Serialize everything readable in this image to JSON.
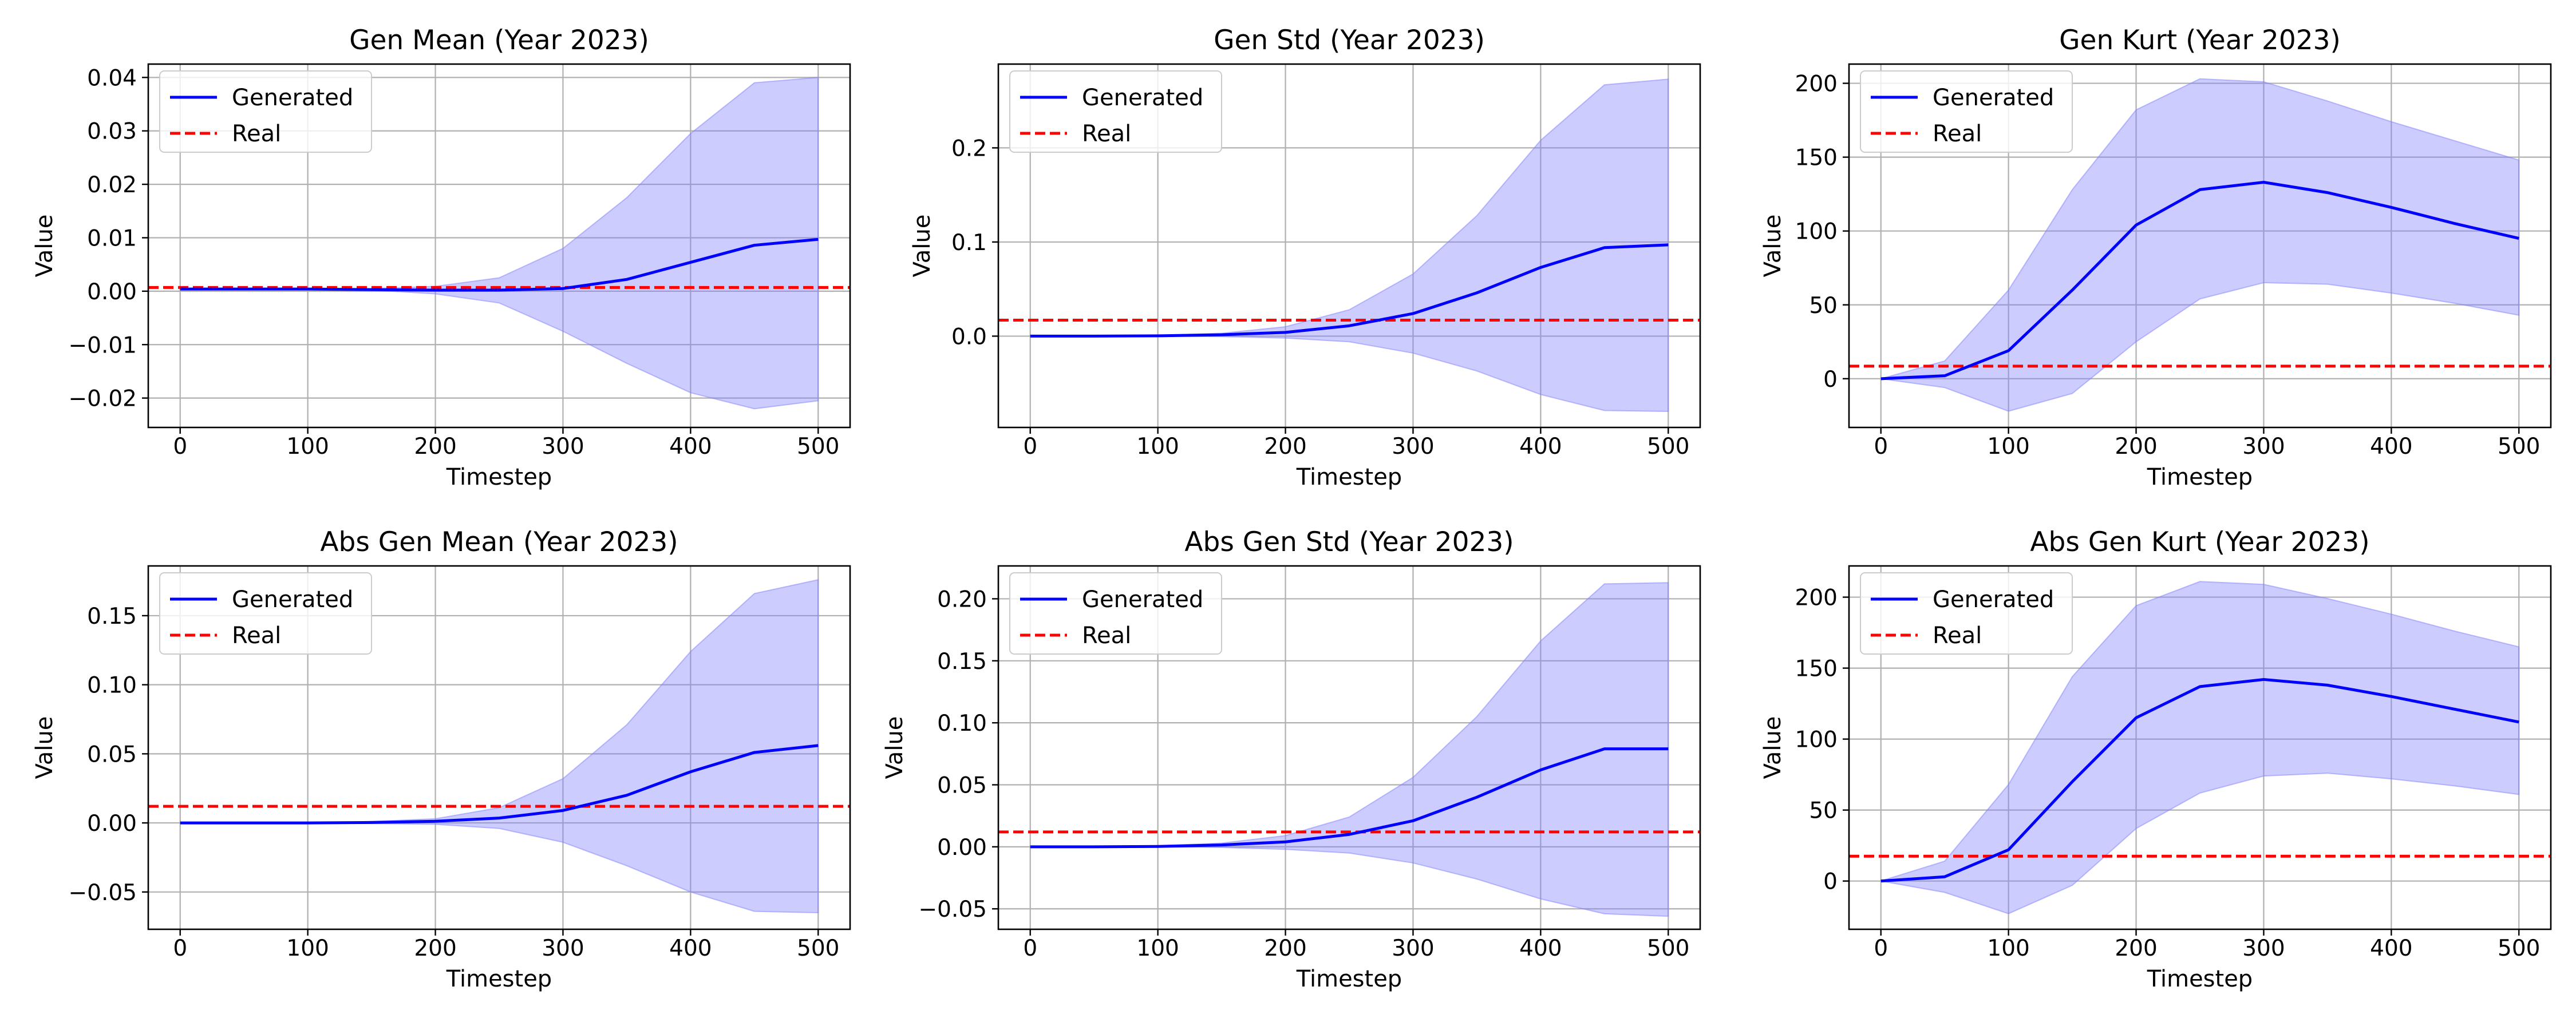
{
  "figure": {
    "background": "#ffffff"
  },
  "colors": {
    "generated": "#0000ff",
    "real": "#ff0000",
    "band": "#8080ff",
    "grid": "#b0b0b0",
    "axis": "#000000"
  },
  "chart_data": [
    {
      "type": "line",
      "title": "Gen Mean (Year 2023)",
      "xlabel": "Timestep",
      "ylabel": "Value",
      "xlim": [
        -25,
        525
      ],
      "ylim": [
        -0.0255,
        0.0425
      ],
      "xticks": [
        0,
        100,
        200,
        300,
        400,
        500
      ],
      "xtick_labels": [
        "0",
        "100",
        "200",
        "300",
        "400",
        "500"
      ],
      "yticks": [
        -0.02,
        -0.01,
        0.0,
        0.01,
        0.02,
        0.03,
        0.04
      ],
      "ytick_labels": [
        "−0.02",
        "−0.01",
        "0.00",
        "0.01",
        "0.02",
        "0.03",
        "0.04"
      ],
      "grid": true,
      "legend": {
        "location": "upper left",
        "entries": [
          "Generated",
          "Real"
        ]
      },
      "x": [
        0,
        50,
        100,
        150,
        200,
        250,
        300,
        350,
        400,
        450,
        500
      ],
      "series": [
        {
          "name": "Generated",
          "style": "solid",
          "values": [
            0.0004,
            0.0004,
            0.0004,
            0.0003,
            0.0002,
            0.0002,
            0.0005,
            0.0022,
            0.0054,
            0.0086,
            0.0097
          ]
        },
        {
          "name": "Real",
          "style": "dashed",
          "values": [
            0.0007,
            0.0007,
            0.0007,
            0.0007,
            0.0007,
            0.0007,
            0.0007,
            0.0007,
            0.0007,
            0.0007,
            0.0007
          ]
        }
      ],
      "band": {
        "lower": [
          0.0004,
          0.0004,
          0.0004,
          0.0002,
          -0.0005,
          -0.0022,
          -0.0075,
          -0.0135,
          -0.019,
          -0.022,
          -0.0205
        ],
        "upper": [
          0.0004,
          0.0004,
          0.0004,
          0.0005,
          0.0009,
          0.0025,
          0.008,
          0.0175,
          0.0295,
          0.039,
          0.04
        ]
      }
    },
    {
      "type": "line",
      "title": "Gen Std (Year 2023)",
      "xlabel": "Timestep",
      "ylabel": "Value",
      "xlim": [
        -25,
        525
      ],
      "ylim": [
        -0.097,
        0.289
      ],
      "xticks": [
        0,
        100,
        200,
        300,
        400,
        500
      ],
      "xtick_labels": [
        "0",
        "100",
        "200",
        "300",
        "400",
        "500"
      ],
      "yticks": [
        0.0,
        0.1,
        0.2
      ],
      "ytick_labels": [
        "0.0",
        "0.1",
        "0.2"
      ],
      "grid": true,
      "legend": {
        "location": "upper left",
        "entries": [
          "Generated",
          "Real"
        ]
      },
      "x": [
        0,
        50,
        100,
        150,
        200,
        250,
        300,
        350,
        400,
        450,
        500
      ],
      "series": [
        {
          "name": "Generated",
          "style": "solid",
          "values": [
            0.0,
            0.0,
            0.0003,
            0.0015,
            0.004,
            0.011,
            0.024,
            0.046,
            0.073,
            0.094,
            0.097
          ]
        },
        {
          "name": "Real",
          "style": "dashed",
          "values": [
            0.017,
            0.017,
            0.017,
            0.017,
            0.017,
            0.017,
            0.017,
            0.017,
            0.017,
            0.017,
            0.017
          ]
        }
      ],
      "band": {
        "lower": [
          0.0,
          0.0,
          0.0,
          -0.0005,
          -0.002,
          -0.006,
          -0.018,
          -0.037,
          -0.062,
          -0.079,
          -0.08
        ],
        "upper": [
          0.0,
          0.0,
          0.0008,
          0.003,
          0.01,
          0.028,
          0.066,
          0.128,
          0.208,
          0.267,
          0.273
        ]
      }
    },
    {
      "type": "line",
      "title": "Gen Kurt (Year 2023)",
      "xlabel": "Timestep",
      "ylabel": "Value",
      "xlim": [
        -25,
        525
      ],
      "ylim": [
        -33,
        213
      ],
      "xticks": [
        0,
        100,
        200,
        300,
        400,
        500
      ],
      "xtick_labels": [
        "0",
        "100",
        "200",
        "300",
        "400",
        "500"
      ],
      "yticks": [
        0,
        50,
        100,
        150,
        200
      ],
      "ytick_labels": [
        "0",
        "50",
        "100",
        "150",
        "200"
      ],
      "grid": true,
      "legend": {
        "location": "upper left",
        "entries": [
          "Generated",
          "Real"
        ]
      },
      "x": [
        0,
        50,
        100,
        150,
        200,
        250,
        300,
        350,
        400,
        450,
        500
      ],
      "series": [
        {
          "name": "Generated",
          "style": "solid",
          "values": [
            0,
            2,
            19,
            60,
            104,
            128,
            133,
            126,
            116,
            105,
            95
          ]
        },
        {
          "name": "Real",
          "style": "dashed",
          "values": [
            8.5,
            8.5,
            8.5,
            8.5,
            8.5,
            8.5,
            8.5,
            8.5,
            8.5,
            8.5,
            8.5
          ]
        }
      ],
      "band": {
        "lower": [
          0,
          -6,
          -22,
          -10,
          25,
          54,
          65,
          64,
          58,
          51,
          43
        ],
        "upper": [
          0,
          12,
          60,
          128,
          182,
          203,
          201,
          188,
          174,
          161,
          148
        ]
      }
    },
    {
      "type": "line",
      "title": "Abs Gen Mean (Year 2023)",
      "xlabel": "Timestep",
      "ylabel": "Value",
      "xlim": [
        -25,
        525
      ],
      "ylim": [
        -0.077,
        0.186
      ],
      "xticks": [
        0,
        100,
        200,
        300,
        400,
        500
      ],
      "xtick_labels": [
        "0",
        "100",
        "200",
        "300",
        "400",
        "500"
      ],
      "yticks": [
        -0.05,
        0.0,
        0.05,
        0.1,
        0.15
      ],
      "ytick_labels": [
        "−0.05",
        "0.00",
        "0.05",
        "0.10",
        "0.15"
      ],
      "grid": true,
      "legend": {
        "location": "upper left",
        "entries": [
          "Generated",
          "Real"
        ]
      },
      "x": [
        0,
        50,
        100,
        150,
        200,
        250,
        300,
        350,
        400,
        450,
        500
      ],
      "series": [
        {
          "name": "Generated",
          "style": "solid",
          "values": [
            0.0,
            0.0,
            0.0,
            0.0003,
            0.0012,
            0.0035,
            0.009,
            0.02,
            0.037,
            0.051,
            0.056
          ]
        },
        {
          "name": "Real",
          "style": "dashed",
          "values": [
            0.012,
            0.012,
            0.012,
            0.012,
            0.012,
            0.012,
            0.012,
            0.012,
            0.012,
            0.012,
            0.012
          ]
        }
      ],
      "band": {
        "lower": [
          0.0,
          0.0,
          0.0,
          -0.0005,
          -0.001,
          -0.004,
          -0.014,
          -0.031,
          -0.05,
          -0.064,
          -0.065
        ],
        "upper": [
          0.0,
          0.0,
          0.0,
          0.001,
          0.003,
          0.011,
          0.032,
          0.071,
          0.124,
          0.166,
          0.176
        ]
      }
    },
    {
      "type": "line",
      "title": "Abs Gen Std (Year 2023)",
      "xlabel": "Timestep",
      "ylabel": "Value",
      "xlim": [
        -25,
        525
      ],
      "ylim": [
        -0.0665,
        0.2265
      ],
      "xticks": [
        0,
        100,
        200,
        300,
        400,
        500
      ],
      "xtick_labels": [
        "0",
        "100",
        "200",
        "300",
        "400",
        "500"
      ],
      "yticks": [
        -0.05,
        0.0,
        0.05,
        0.1,
        0.15,
        0.2
      ],
      "ytick_labels": [
        "−0.05",
        "0.00",
        "0.05",
        "0.10",
        "0.15",
        "0.20"
      ],
      "grid": true,
      "legend": {
        "location": "upper left",
        "entries": [
          "Generated",
          "Real"
        ]
      },
      "x": [
        0,
        50,
        100,
        150,
        200,
        250,
        300,
        350,
        400,
        450,
        500
      ],
      "series": [
        {
          "name": "Generated",
          "style": "solid",
          "values": [
            0.0,
            0.0,
            0.0003,
            0.0015,
            0.004,
            0.01,
            0.021,
            0.04,
            0.062,
            0.079,
            0.079
          ]
        },
        {
          "name": "Real",
          "style": "dashed",
          "values": [
            0.012,
            0.012,
            0.012,
            0.012,
            0.012,
            0.012,
            0.012,
            0.012,
            0.012,
            0.012,
            0.012
          ]
        }
      ],
      "band": {
        "lower": [
          0.0,
          0.0,
          0.0,
          -0.0005,
          -0.002,
          -0.005,
          -0.013,
          -0.026,
          -0.042,
          -0.054,
          -0.056
        ],
        "upper": [
          0.0,
          0.0,
          0.0008,
          0.003,
          0.009,
          0.024,
          0.056,
          0.105,
          0.166,
          0.212,
          0.213
        ]
      }
    },
    {
      "type": "line",
      "title": "Abs Gen Kurt (Year 2023)",
      "xlabel": "Timestep",
      "ylabel": "Value",
      "xlim": [
        -25,
        525
      ],
      "ylim": [
        -34,
        222
      ],
      "xticks": [
        0,
        100,
        200,
        300,
        400,
        500
      ],
      "xtick_labels": [
        "0",
        "100",
        "200",
        "300",
        "400",
        "500"
      ],
      "yticks": [
        0,
        50,
        100,
        150,
        200
      ],
      "ytick_labels": [
        "0",
        "50",
        "100",
        "150",
        "200"
      ],
      "grid": true,
      "legend": {
        "location": "upper left",
        "entries": [
          "Generated",
          "Real"
        ]
      },
      "x": [
        0,
        50,
        100,
        150,
        200,
        250,
        300,
        350,
        400,
        450,
        500
      ],
      "series": [
        {
          "name": "Generated",
          "style": "solid",
          "values": [
            0,
            3,
            22,
            70,
            115,
            137,
            142,
            138,
            130,
            121,
            112
          ]
        },
        {
          "name": "Real",
          "style": "dashed",
          "values": [
            17.5,
            17.5,
            17.5,
            17.5,
            17.5,
            17.5,
            17.5,
            17.5,
            17.5,
            17.5,
            17.5
          ]
        }
      ],
      "band": {
        "lower": [
          0,
          -8,
          -23,
          -3,
          37,
          62,
          74,
          76,
          72,
          67,
          61
        ],
        "upper": [
          0,
          14,
          68,
          144,
          194,
          211,
          209,
          199,
          188,
          176,
          165
        ]
      }
    }
  ]
}
